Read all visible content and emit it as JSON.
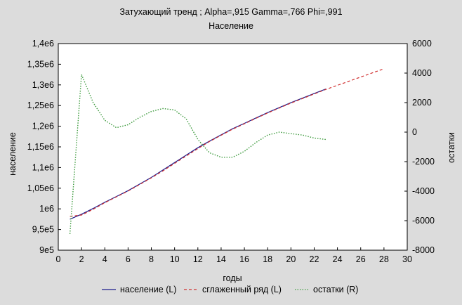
{
  "chart_data": {
    "type": "line",
    "title": "Затухающий тренд ; Alpha=,915 Gamma=,766 Phi=,991",
    "subtitle": "Население",
    "xlabel": "годы",
    "ylabel_left": "население",
    "ylabel_right": "остатки",
    "xlim": [
      0,
      30
    ],
    "ylim_left": [
      950000,
      1400000
    ],
    "ylim_right": [
      -8000,
      6000
    ],
    "x_ticks": [
      "0",
      "2",
      "4",
      "6",
      "8",
      "10",
      "12",
      "14",
      "16",
      "18",
      "20",
      "22",
      "24",
      "26",
      "28",
      "30"
    ],
    "y_left_ticks": [
      "9e5",
      "9,5e5",
      "1e6",
      "1,05e6",
      "1,1e6",
      "1,15e6",
      "1,2e6",
      "1,25e6",
      "1,3e6",
      "1,35e6",
      "1,4e6"
    ],
    "y_left_tick_values": [
      900000,
      950000,
      1000000,
      1050000,
      1100000,
      1150000,
      1200000,
      1250000,
      1300000,
      1350000,
      1400000
    ],
    "y_right_ticks": [
      "-8000",
      "-6000",
      "-4000",
      "-2000",
      "0",
      "2000",
      "4000",
      "6000"
    ],
    "y_right_tick_values": [
      -8000,
      -6000,
      -4000,
      -2000,
      0,
      2000,
      4000,
      6000
    ],
    "grid": false,
    "legend_position": "bottom",
    "series": [
      {
        "name": "население (L)",
        "axis": "left",
        "color": "#1c1c8c",
        "style": "solid",
        "x": [
          1,
          2,
          3,
          4,
          5,
          6,
          7,
          8,
          9,
          10,
          11,
          12,
          13,
          14,
          15,
          16,
          17,
          18,
          19,
          20,
          21,
          22,
          23
        ],
        "values": [
          975000,
          987000,
          1001000,
          1016000,
          1030000,
          1044000,
          1060000,
          1076000,
          1094000,
          1112000,
          1130000,
          1148000,
          1164000,
          1179000,
          1194000,
          1207000,
          1220000,
          1233000,
          1245000,
          1257000,
          1268000,
          1279000,
          1290000
        ]
      },
      {
        "name": "сглаженный ряд (L)",
        "axis": "left",
        "color": "#d03030",
        "style": "dashed",
        "x": [
          1,
          2,
          3,
          4,
          5,
          6,
          7,
          8,
          9,
          10,
          11,
          12,
          13,
          14,
          15,
          16,
          17,
          18,
          19,
          20,
          21,
          22,
          23,
          24,
          25,
          26,
          27,
          28
        ],
        "values": [
          982000,
          985000,
          999000,
          1015000,
          1029000,
          1043000,
          1059000,
          1075000,
          1092000,
          1110000,
          1128000,
          1146000,
          1163000,
          1178000,
          1193000,
          1206000,
          1219000,
          1232000,
          1244000,
          1256000,
          1267000,
          1278000,
          1289000,
          1299000,
          1309000,
          1319000,
          1329000,
          1339000
        ]
      },
      {
        "name": "остатки (R)",
        "axis": "right",
        "color": "#3c9a3c",
        "style": "dotted",
        "x": [
          1,
          2,
          3,
          4,
          5,
          6,
          7,
          8,
          9,
          10,
          11,
          12,
          13,
          14,
          15,
          16,
          17,
          18,
          19,
          20,
          21,
          22,
          23
        ],
        "values": [
          -6900,
          3900,
          2000,
          800,
          300,
          500,
          1000,
          1400,
          1600,
          1500,
          900,
          -500,
          -1400,
          -1700,
          -1700,
          -1300,
          -700,
          -200,
          0,
          -100,
          -200,
          -400,
          -500
        ]
      }
    ]
  }
}
